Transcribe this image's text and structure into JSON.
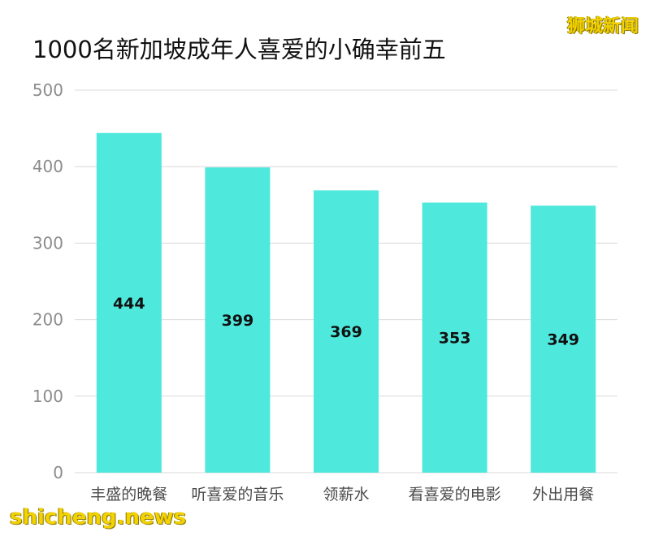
{
  "watermark_top": "狮城新闻",
  "watermark_bottom": "shicheng.news",
  "colors": {
    "bar": "#4ee8dc",
    "grid": "#d9d9d9",
    "axis_text": "#8c8c8c"
  },
  "chart_data": {
    "type": "bar",
    "title": "1000名新加坡成年人喜爱的小确幸前五",
    "xlabel": "",
    "ylabel": "",
    "categories": [
      "丰盛的晚餐",
      "听喜爱的音乐",
      "领薪水",
      "看喜爱的电影",
      "外出用餐"
    ],
    "values": [
      444,
      399,
      369,
      353,
      349
    ],
    "data_labels": [
      "444",
      "399",
      "369",
      "353",
      "349"
    ],
    "ylim": [
      0,
      500
    ],
    "yticks": [
      0,
      100,
      200,
      300,
      400,
      500
    ],
    "grid": true,
    "legend": "none"
  }
}
